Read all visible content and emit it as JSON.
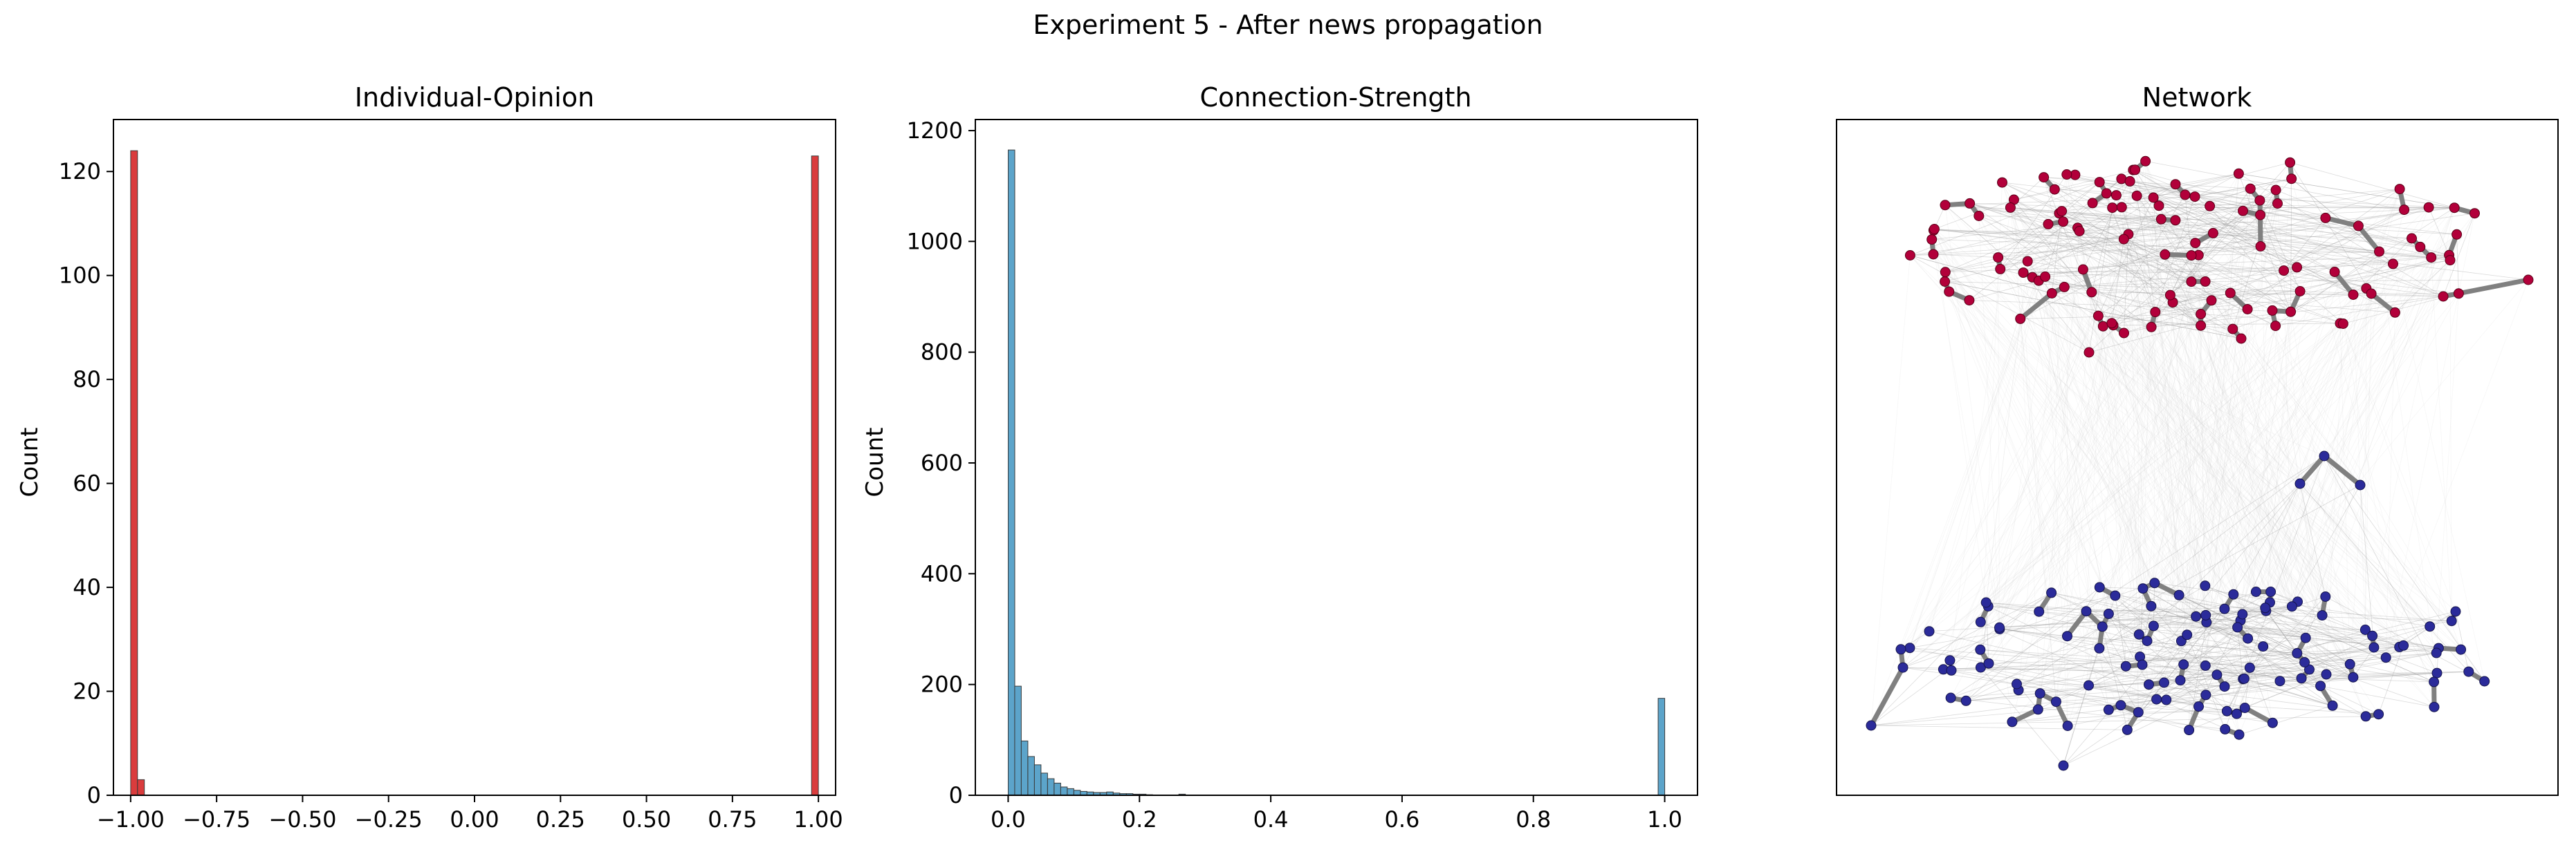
{
  "figure": {
    "title": "Experiment 5 - After news propagation"
  },
  "chart_data": [
    {
      "type": "bar",
      "title": "Individual-Opinion",
      "xlabel": "",
      "ylabel": "Count",
      "xlim": [
        -1.05,
        1.05
      ],
      "ylim": [
        0,
        130
      ],
      "xticks": [
        -1.0,
        -0.75,
        -0.5,
        -0.25,
        0.0,
        0.25,
        0.5,
        0.75,
        1.0
      ],
      "xtick_labels": [
        "−1.00",
        "−0.75",
        "−0.50",
        "−0.25",
        "0.00",
        "0.25",
        "0.50",
        "0.75",
        "1.00"
      ],
      "yticks": [
        0,
        20,
        40,
        60,
        80,
        100,
        120
      ],
      "ytick_labels": [
        "0",
        "20",
        "40",
        "60",
        "80",
        "100",
        "120"
      ],
      "bin_width": 0.02,
      "bar_color": "#d62728",
      "bins": [
        {
          "x": -0.99,
          "count": 124
        },
        {
          "x": -0.97,
          "count": 3
        },
        {
          "x": 0.99,
          "count": 123
        }
      ]
    },
    {
      "type": "bar",
      "title": "Connection-Strength",
      "xlabel": "",
      "ylabel": "Count",
      "xlim": [
        -0.05,
        1.05
      ],
      "ylim": [
        0,
        1220
      ],
      "xticks": [
        0.0,
        0.2,
        0.4,
        0.6,
        0.8,
        1.0
      ],
      "xtick_labels": [
        "0.0",
        "0.2",
        "0.4",
        "0.6",
        "0.8",
        "1.0"
      ],
      "yticks": [
        0,
        200,
        400,
        600,
        800,
        1000,
        1200
      ],
      "ytick_labels": [
        "0",
        "200",
        "400",
        "600",
        "800",
        "1000",
        "1200"
      ],
      "bin_width": 0.01,
      "bar_color": "#4a9ac4",
      "bins": [
        {
          "x": 0.005,
          "count": 1165
        },
        {
          "x": 0.015,
          "count": 197
        },
        {
          "x": 0.025,
          "count": 98
        },
        {
          "x": 0.035,
          "count": 70
        },
        {
          "x": 0.045,
          "count": 55
        },
        {
          "x": 0.055,
          "count": 40
        },
        {
          "x": 0.065,
          "count": 30
        },
        {
          "x": 0.075,
          "count": 22
        },
        {
          "x": 0.085,
          "count": 15
        },
        {
          "x": 0.095,
          "count": 12
        },
        {
          "x": 0.105,
          "count": 9
        },
        {
          "x": 0.115,
          "count": 7
        },
        {
          "x": 0.125,
          "count": 6
        },
        {
          "x": 0.135,
          "count": 5
        },
        {
          "x": 0.145,
          "count": 5
        },
        {
          "x": 0.155,
          "count": 6
        },
        {
          "x": 0.165,
          "count": 4
        },
        {
          "x": 0.175,
          "count": 3
        },
        {
          "x": 0.185,
          "count": 3
        },
        {
          "x": 0.195,
          "count": 2
        },
        {
          "x": 0.205,
          "count": 2
        },
        {
          "x": 0.215,
          "count": 1
        },
        {
          "x": 0.265,
          "count": 2
        },
        {
          "x": 0.995,
          "count": 175
        }
      ]
    },
    {
      "type": "network",
      "title": "Network",
      "groups": [
        {
          "opinion": 1,
          "color": "#b2003a"
        },
        {
          "opinion": -1,
          "color": "#2b2b9a"
        }
      ],
      "strong_edge_color": "#808080",
      "weak_edge_color": "#cccccc"
    }
  ]
}
